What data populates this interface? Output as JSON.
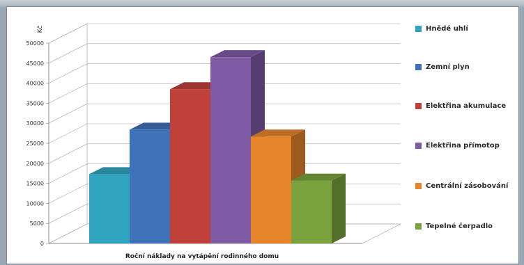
{
  "chart_data": {
    "type": "bar",
    "title": "",
    "xlabel": "Roční náklady na vytápění rodinného domu",
    "ylabel": "Kč",
    "ylim": [
      0,
      50000
    ],
    "yticks": [
      "0",
      "5000",
      "10000",
      "15000",
      "20000",
      "25000",
      "30000",
      "35000",
      "40000",
      "45000",
      "50000"
    ],
    "grid": true,
    "legend_position": "right",
    "three_d": true,
    "series": [
      {
        "name": "Hnědé uhlí",
        "values": [
          17300
        ],
        "color": "#31a5c0"
      },
      {
        "name": "Zemní plyn",
        "values": [
          28400
        ],
        "color": "#3f72b8"
      },
      {
        "name": "Elektřina akumulace",
        "values": [
          38500
        ],
        "color": "#c0413a"
      },
      {
        "name": "Elektřina přímotop",
        "values": [
          46500
        ],
        "color": "#7f5aa5"
      },
      {
        "name": "Centrální zásobování",
        "values": [
          26700
        ],
        "color": "#e7852d"
      },
      {
        "name": "Tepelné čerpadlo",
        "values": [
          15700
        ],
        "color": "#7aa33d"
      }
    ]
  }
}
